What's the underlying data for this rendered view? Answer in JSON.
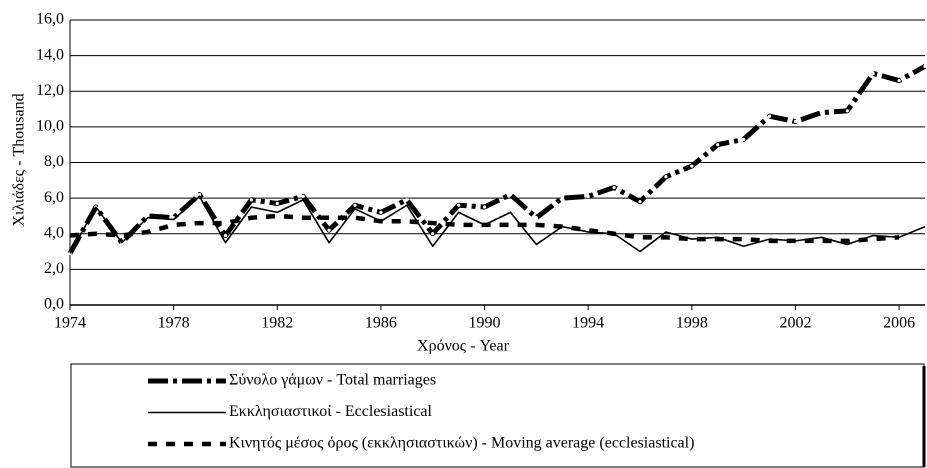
{
  "chart_data": {
    "type": "line",
    "xlabel": "Χρόνος - Year",
    "ylabel": "Χιλιάδες - Thousand",
    "x": [
      1974,
      1975,
      1976,
      1977,
      1978,
      1979,
      1980,
      1981,
      1982,
      1983,
      1984,
      1985,
      1986,
      1987,
      1988,
      1989,
      1990,
      1991,
      1992,
      1993,
      1994,
      1995,
      1996,
      1997,
      1998,
      1999,
      2000,
      2001,
      2002,
      2003,
      2004,
      2005,
      2006,
      2007
    ],
    "series": [
      {
        "name": "Σύνολο γάμων - Total marriages",
        "color": "#000000",
        "line_style": "dash-dot",
        "values": [
          2.9,
          5.5,
          3.5,
          5.0,
          4.9,
          6.2,
          3.9,
          5.9,
          5.7,
          6.1,
          4.2,
          5.6,
          5.2,
          5.9,
          4.0,
          5.6,
          5.5,
          6.2,
          4.9,
          6.0,
          6.1,
          6.6,
          5.8,
          7.2,
          7.8,
          9.0,
          9.3,
          10.6,
          10.3,
          10.8,
          10.9,
          13.0,
          12.6,
          13.4
        ]
      },
      {
        "name": "Εκκλησιαστικοί - Ecclesiastical",
        "color": "#000000",
        "line_style": "solid",
        "values": [
          2.9,
          5.5,
          3.5,
          4.9,
          4.8,
          6.1,
          3.5,
          5.5,
          5.2,
          5.9,
          3.5,
          5.4,
          4.7,
          5.6,
          3.3,
          5.2,
          4.5,
          5.2,
          3.4,
          4.4,
          4.1,
          4.0,
          3.0,
          4.1,
          3.7,
          3.8,
          3.3,
          3.7,
          3.6,
          3.8,
          3.4,
          3.9,
          3.8,
          4.4
        ]
      },
      {
        "name": "Κινητός μέσος όρος (εκκλησιαστικών) - Moving average (ecclesiastical)",
        "color": "#000000",
        "line_style": "dashed",
        "values": [
          3.9,
          4.0,
          3.9,
          4.1,
          4.5,
          4.6,
          4.6,
          4.9,
          5.0,
          4.9,
          4.9,
          4.9,
          4.7,
          4.7,
          4.6,
          4.5,
          4.5,
          4.5,
          4.5,
          4.4,
          4.2,
          4.0,
          3.8,
          3.8,
          3.7,
          3.7,
          3.7,
          3.6,
          3.6,
          3.6,
          3.6,
          3.7,
          3.8,
          null
        ]
      }
    ],
    "xlim": [
      1974,
      2007
    ],
    "xticks": [
      1974,
      1978,
      1982,
      1986,
      1990,
      1994,
      1998,
      2002,
      2006
    ],
    "ylim": [
      0,
      16
    ],
    "yticks": [
      {
        "value": 0,
        "label": "0,0"
      },
      {
        "value": 2,
        "label": "2,0"
      },
      {
        "value": 4,
        "label": "4,0"
      },
      {
        "value": 6,
        "label": "6,0"
      },
      {
        "value": 8,
        "label": "8,0"
      },
      {
        "value": 10,
        "label": "10,0"
      },
      {
        "value": 12,
        "label": "12,0"
      },
      {
        "value": 14,
        "label": "14,0"
      },
      {
        "value": 16,
        "label": "16,0"
      }
    ],
    "grid": true,
    "legend": "bottom"
  }
}
